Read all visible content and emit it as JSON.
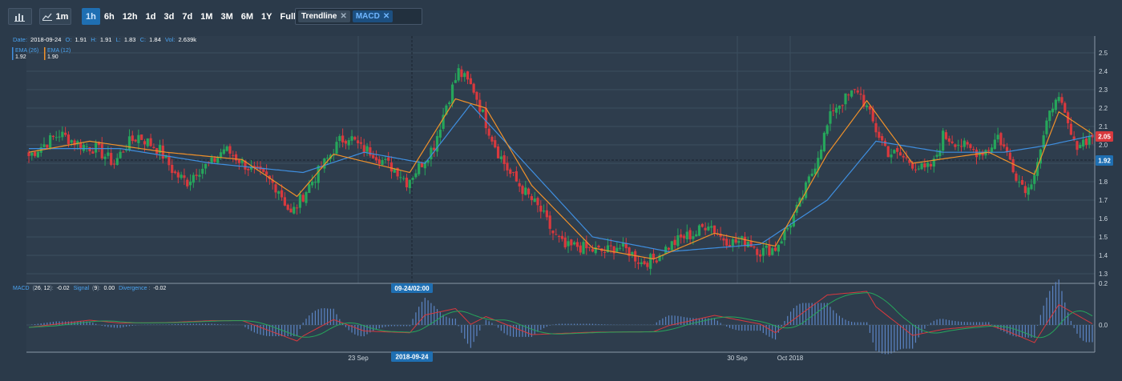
{
  "toolbar": {
    "interval": "1m",
    "ranges": [
      "1h",
      "6h",
      "12h",
      "1d",
      "3d",
      "7d",
      "1M",
      "3M",
      "6M",
      "1Y",
      "Full"
    ],
    "active_range": "1h",
    "indicators": [
      "Trendline",
      "MACD"
    ]
  },
  "info": {
    "date_label": "Date:",
    "date": "2018-09-24",
    "o_label": "O:",
    "o": "1.91",
    "h_label": "H:",
    "h": "1.91",
    "l_label": "L:",
    "l": "1.83",
    "c_label": "C:",
    "c": "1.84",
    "vol_label": "Vol:",
    "vol": "2.639k"
  },
  "ema_legend": [
    {
      "name": "EMA (26)",
      "value": "1.92",
      "color": "#3f8fe0"
    },
    {
      "name": "EMA (12)",
      "value": "1.90",
      "color": "#f0912a"
    }
  ],
  "macd_legend": {
    "prefix": "MACD",
    "param_a": "26",
    "param_b": "12",
    "macd_value": "-0.02",
    "signal_label": "Signal",
    "signal_param": "9",
    "signal_value": "0.00",
    "divergence_label": "Divergence",
    "divergence_value": "-0.02"
  },
  "crosshair": {
    "time_label": "09-24/02:00",
    "date_label": "2018-09-24"
  },
  "price_tags": [
    {
      "value": "2.05",
      "color": "#d8393e"
    },
    {
      "value": "1.92",
      "color": "#1f6fb2"
    }
  ],
  "colors": {
    "up": "#26a65b",
    "down": "#d8393e",
    "ema26": "#3f8fe0",
    "ema12": "#f0912a",
    "macd": "#d8393e",
    "signal": "#26a65b",
    "histogram": "#5b84c4"
  },
  "chart_data": [
    {
      "type": "candlestick",
      "ylim": [
        1.26,
        2.56
      ],
      "y_ticks": [
        "1.3",
        "1.4",
        "1.5",
        "1.6",
        "1.7",
        "1.8",
        "1.9",
        "2.0",
        "2.1",
        "2.2",
        "2.3",
        "2.4",
        "2.5"
      ],
      "x_ticks": [
        "23 Sep",
        "30 Sep",
        "Oct 2018"
      ],
      "close_anchors": [
        [
          0,
          1.94
        ],
        [
          3,
          1.98
        ],
        [
          10,
          2.06
        ],
        [
          17,
          2.0
        ],
        [
          22,
          1.98
        ],
        [
          28,
          1.9
        ],
        [
          32,
          2.0
        ],
        [
          36,
          2.05
        ],
        [
          43,
          1.97
        ],
        [
          48,
          1.84
        ],
        [
          52,
          1.8
        ],
        [
          55,
          1.86
        ],
        [
          60,
          1.9
        ],
        [
          64,
          1.98
        ],
        [
          69,
          1.92
        ],
        [
          74,
          1.85
        ],
        [
          78,
          1.82
        ],
        [
          82,
          1.76
        ],
        [
          86,
          1.62
        ],
        [
          92,
          1.78
        ],
        [
          97,
          1.9
        ],
        [
          102,
          2.02
        ],
        [
          105,
          2.05
        ],
        [
          109,
          1.98
        ],
        [
          113,
          1.96
        ],
        [
          117,
          1.9
        ],
        [
          121,
          1.86
        ],
        [
          124,
          1.8
        ],
        [
          128,
          1.88
        ],
        [
          133,
          2.0
        ],
        [
          137,
          2.22
        ],
        [
          141,
          2.4
        ],
        [
          146,
          2.3
        ],
        [
          150,
          2.12
        ],
        [
          154,
          1.96
        ],
        [
          158,
          1.84
        ],
        [
          163,
          1.74
        ],
        [
          168,
          1.64
        ],
        [
          172,
          1.52
        ],
        [
          176,
          1.44
        ],
        [
          180,
          1.45
        ],
        [
          184,
          1.43
        ],
        [
          189,
          1.42
        ],
        [
          193,
          1.45
        ],
        [
          197,
          1.42
        ],
        [
          201,
          1.36
        ],
        [
          205,
          1.38
        ],
        [
          210,
          1.45
        ],
        [
          215,
          1.5
        ],
        [
          219,
          1.52
        ],
        [
          223,
          1.58
        ],
        [
          227,
          1.5
        ],
        [
          231,
          1.47
        ],
        [
          236,
          1.48
        ],
        [
          240,
          1.42
        ],
        [
          245,
          1.44
        ],
        [
          249,
          1.55
        ],
        [
          253,
          1.68
        ],
        [
          257,
          1.85
        ],
        [
          261,
          2.05
        ],
        [
          264,
          2.2
        ],
        [
          268,
          2.25
        ],
        [
          272,
          2.3
        ],
        [
          275,
          2.2
        ],
        [
          278,
          2.08
        ],
        [
          282,
          1.96
        ],
        [
          286,
          1.94
        ],
        [
          290,
          1.9
        ],
        [
          294,
          1.86
        ],
        [
          297,
          1.9
        ],
        [
          300,
          2.05
        ],
        [
          304,
          2.02
        ],
        [
          308,
          1.98
        ],
        [
          312,
          1.96
        ],
        [
          315,
          1.98
        ],
        [
          318,
          2.05
        ],
        [
          322,
          1.92
        ],
        [
          325,
          1.8
        ],
        [
          328,
          1.76
        ],
        [
          331,
          1.92
        ],
        [
          334,
          2.1
        ],
        [
          337,
          2.28
        ],
        [
          340,
          2.15
        ],
        [
          343,
          2.0
        ],
        [
          346,
          2.02
        ],
        [
          349,
          2.05
        ]
      ],
      "ema26_anchors": [
        [
          0,
          1.98
        ],
        [
          30,
          1.98
        ],
        [
          60,
          1.9
        ],
        [
          90,
          1.85
        ],
        [
          110,
          1.96
        ],
        [
          130,
          1.9
        ],
        [
          145,
          2.22
        ],
        [
          165,
          1.86
        ],
        [
          185,
          1.5
        ],
        [
          210,
          1.42
        ],
        [
          240,
          1.46
        ],
        [
          262,
          1.7
        ],
        [
          278,
          2.02
        ],
        [
          300,
          1.96
        ],
        [
          320,
          1.96
        ],
        [
          335,
          2.0
        ],
        [
          349,
          2.05
        ]
      ],
      "ema12_anchors": [
        [
          0,
          1.96
        ],
        [
          20,
          2.02
        ],
        [
          45,
          1.96
        ],
        [
          70,
          1.92
        ],
        [
          88,
          1.72
        ],
        [
          100,
          1.95
        ],
        [
          125,
          1.85
        ],
        [
          140,
          2.25
        ],
        [
          150,
          2.2
        ],
        [
          165,
          1.78
        ],
        [
          185,
          1.44
        ],
        [
          205,
          1.38
        ],
        [
          225,
          1.52
        ],
        [
          245,
          1.45
        ],
        [
          262,
          1.95
        ],
        [
          275,
          2.24
        ],
        [
          290,
          1.9
        ],
        [
          315,
          1.96
        ],
        [
          330,
          1.84
        ],
        [
          338,
          2.18
        ],
        [
          349,
          2.06
        ]
      ]
    },
    {
      "type": "macd",
      "params": {
        "fast": 12,
        "slow": 26,
        "signal": 9
      },
      "y_ticks": [
        "0.2",
        "0.0"
      ]
    }
  ]
}
